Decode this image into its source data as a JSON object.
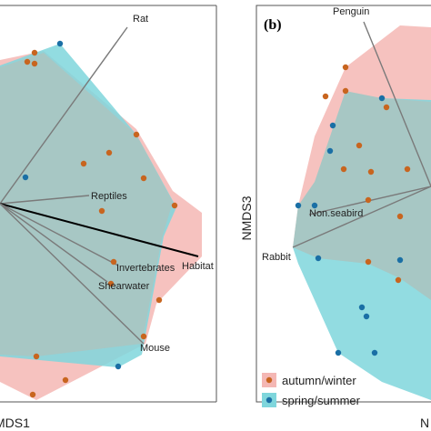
{
  "chart_data": [
    {
      "type": "scatter",
      "panel": "",
      "xlabel": "MDS1",
      "ylabel": "",
      "colors": {
        "autumn_winter": "#c8651f",
        "spring_summer": "#1a6fa5",
        "autumn_winter_hull": "#f4b7b4",
        "spring_summer_hull": "#7fd6dc",
        "overlap": "#a7c7c4"
      },
      "vectors": [
        {
          "label": "Rat",
          "end": [
            140,
            30
          ]
        },
        {
          "label": "Reptiles",
          "end": [
            98,
            215
          ]
        },
        {
          "label": "Habitat",
          "end": [
            218,
            282
          ]
        },
        {
          "label": "Invertebrates",
          "end": [
            130,
            292
          ]
        },
        {
          "label": "Shearwater",
          "end": [
            118,
            310
          ]
        },
        {
          "label": "Mouse",
          "end": [
            158,
            378
          ]
        }
      ],
      "series": [
        {
          "name": "autumn/winter",
          "points": [
            [
              30,
              68
            ],
            [
              38,
              58
            ],
            [
              38,
              70
            ],
            [
              120,
              168
            ],
            [
              92,
              180
            ],
            [
              150,
              148
            ],
            [
              158,
              196
            ],
            [
              192,
              226
            ],
            [
              112,
              232
            ],
            [
              125,
              288
            ],
            [
              122,
              312
            ],
            [
              175,
              330
            ],
            [
              158,
              370
            ],
            [
              40,
              392
            ],
            [
              72,
              418
            ],
            [
              36,
              434
            ]
          ]
        },
        {
          "name": "spring/summer",
          "points": [
            [
              66,
              48
            ],
            [
              28,
              195
            ],
            [
              130,
              403
            ]
          ]
        }
      ]
    },
    {
      "type": "scatter",
      "panel": "(b)",
      "xlabel": "N",
      "ylabel": "NMDS3",
      "colors": {
        "autumn_winter": "#c8651f",
        "spring_summer": "#1a6fa5",
        "autumn_winter_hull": "#f4b7b4",
        "spring_summer_hull": "#7fd6dc",
        "overlap": "#a7c7c4"
      },
      "vectors": [
        {
          "label": "Penguin",
          "end": [
            400,
            24
          ]
        },
        {
          "label": "Non.seabird",
          "end": [
            340,
            236
          ]
        },
        {
          "label": "Rabbit",
          "end": [
            322,
            272
          ]
        }
      ],
      "series": [
        {
          "name": "autumn/winter",
          "points": [
            [
              380,
              74
            ],
            [
              380,
              100
            ],
            [
              358,
              106
            ],
            [
              425,
              118
            ],
            [
              395,
              160
            ],
            [
              378,
              186
            ],
            [
              408,
              189
            ],
            [
              448,
              186
            ],
            [
              405,
              220
            ],
            [
              440,
              238
            ],
            [
              405,
              288
            ],
            [
              438,
              308
            ]
          ]
        },
        {
          "name": "spring/summer",
          "points": [
            [
              420,
              108
            ],
            [
              366,
              138
            ],
            [
              363,
              166
            ],
            [
              328,
              226
            ],
            [
              346,
              226
            ],
            [
              440,
              286
            ],
            [
              350,
              284
            ],
            [
              398,
              338
            ],
            [
              403,
              348
            ],
            [
              372,
              388
            ],
            [
              412,
              388
            ]
          ]
        }
      ],
      "legend": {
        "placement": "bottom-left",
        "entries": [
          "autumn/winter",
          "spring/summer"
        ]
      }
    }
  ]
}
